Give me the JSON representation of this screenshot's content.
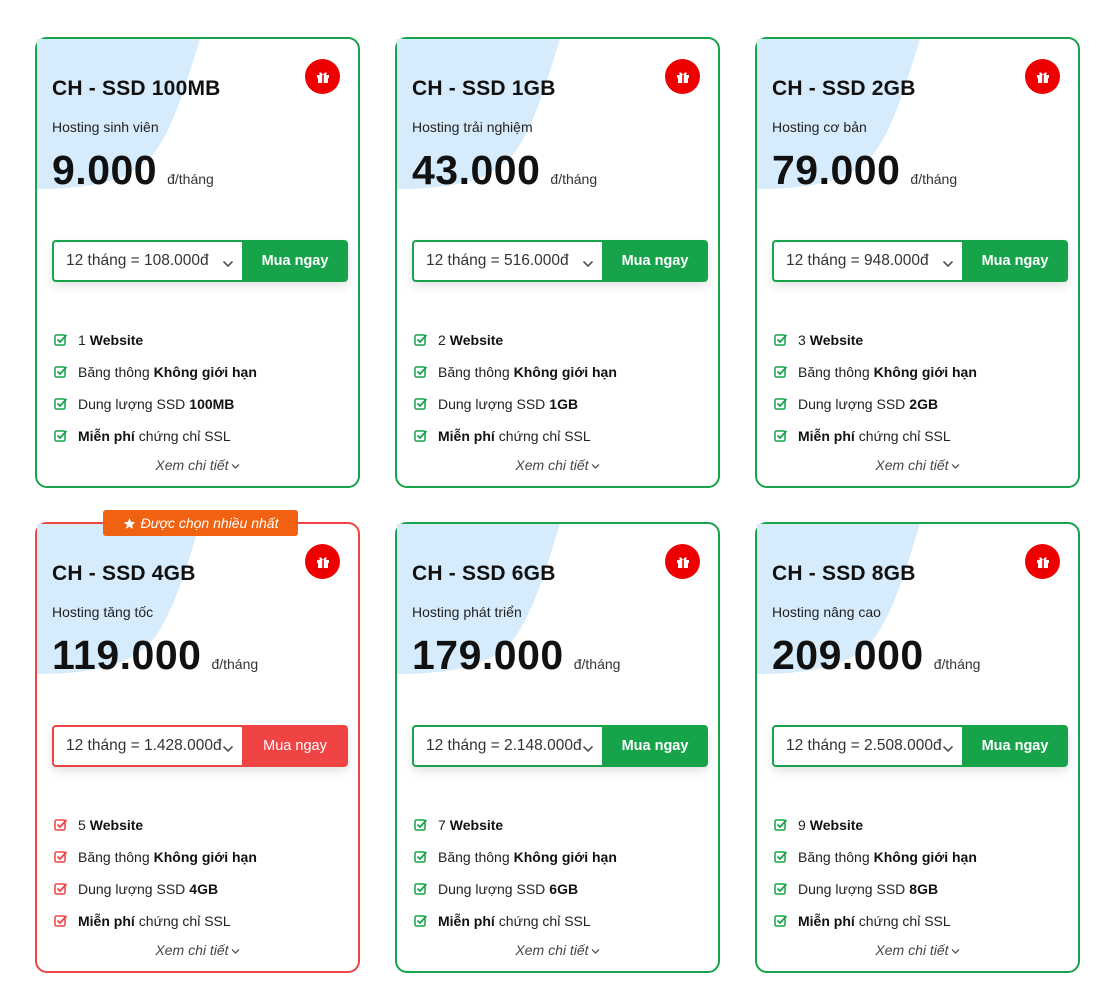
{
  "colors": {
    "green": "#16a34a",
    "red": "#ef4444",
    "orange": "#f06212",
    "gift_red": "#ee0000",
    "blob_blue": "#d6ebfb"
  },
  "detail_label": "Xem chi tiết",
  "buy_label": "Mua ngay",
  "unit_label": "đ/tháng",
  "feature_prefixes": {
    "bandwidth": "Băng thông",
    "storage": "Dung lượng SSD",
    "ssl_suffix": "chứng chỉ SSL"
  },
  "feature_bold": {
    "website": "Website",
    "unlimited": "Không giới hạn",
    "free": "Miễn phí"
  },
  "plans": [
    {
      "title": "CH - SSD 100MB",
      "subtitle": "Hosting sinh viên",
      "price": "9.000",
      "select": "12 tháng = 108.000đ",
      "websites": "1",
      "storage": "100MB",
      "accent": "green"
    },
    {
      "title": "CH - SSD 1GB",
      "subtitle": "Hosting trải nghiệm",
      "price": "43.000",
      "select": "12 tháng = 516.000đ",
      "websites": "2",
      "storage": "1GB",
      "accent": "green"
    },
    {
      "title": "CH - SSD 2GB",
      "subtitle": "Hosting cơ bản",
      "price": "79.000",
      "select": "12 tháng = 948.000đ",
      "websites": "3",
      "storage": "2GB",
      "accent": "green"
    },
    {
      "title": "CH - SSD 4GB",
      "subtitle": "Hosting tăng tốc",
      "price": "119.000",
      "select": "12 tháng = 1.428.000đ",
      "websites": "5",
      "storage": "4GB",
      "accent": "red",
      "badge": "Được chọn nhiều nhất"
    },
    {
      "title": "CH - SSD 6GB",
      "subtitle": "Hosting phát triển",
      "price": "179.000",
      "select": "12 tháng = 2.148.000đ",
      "websites": "7",
      "storage": "6GB",
      "accent": "green"
    },
    {
      "title": "CH - SSD 8GB",
      "subtitle": "Hosting nâng cao",
      "price": "209.000",
      "select": "12 tháng = 2.508.000đ",
      "websites": "9",
      "storage": "8GB",
      "accent": "green"
    }
  ]
}
